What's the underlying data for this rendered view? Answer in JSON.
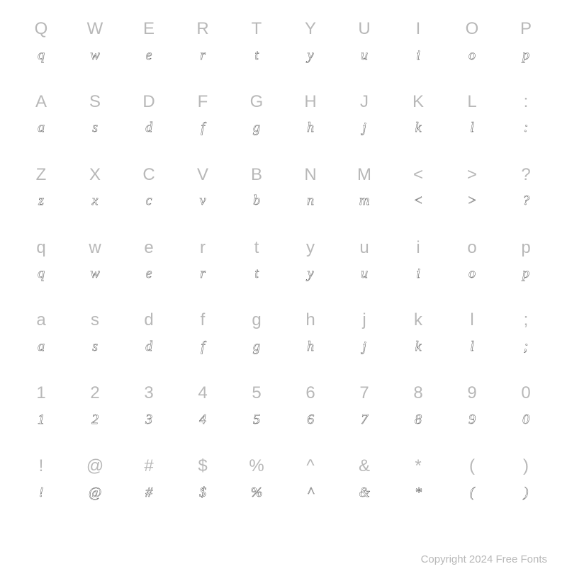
{
  "rows": [
    {
      "labels": [
        "Q",
        "W",
        "E",
        "R",
        "T",
        "Y",
        "U",
        "I",
        "O",
        "P"
      ],
      "glyphs": [
        "q",
        "w",
        "e",
        "r",
        "t",
        "y",
        "u",
        "i",
        "o",
        "p"
      ]
    },
    {
      "labels": [
        "A",
        "S",
        "D",
        "F",
        "G",
        "H",
        "J",
        "K",
        "L",
        ":"
      ],
      "glyphs": [
        "a",
        "s",
        "d",
        "f",
        "g",
        "h",
        "j",
        "k",
        "l",
        ":"
      ]
    },
    {
      "labels": [
        "Z",
        "X",
        "C",
        "V",
        "B",
        "N",
        "M",
        "<",
        ">",
        "?"
      ],
      "glyphs": [
        "z",
        "x",
        "c",
        "v",
        "b",
        "n",
        "m",
        "<",
        ">",
        "?"
      ]
    },
    {
      "labels": [
        "q",
        "w",
        "e",
        "r",
        "t",
        "y",
        "u",
        "i",
        "o",
        "p"
      ],
      "glyphs": [
        "q",
        "w",
        "e",
        "r",
        "t",
        "y",
        "u",
        "i",
        "o",
        "p"
      ]
    },
    {
      "labels": [
        "a",
        "s",
        "d",
        "f",
        "g",
        "h",
        "j",
        "k",
        "l",
        ";"
      ],
      "glyphs": [
        "a",
        "s",
        "d",
        "f",
        "g",
        "h",
        "j",
        "k",
        "l",
        ";"
      ]
    },
    {
      "labels": [
        "1",
        "2",
        "3",
        "4",
        "5",
        "6",
        "7",
        "8",
        "9",
        "0"
      ],
      "glyphs": [
        "1",
        "2",
        "3",
        "4",
        "5",
        "6",
        "7",
        "8",
        "9",
        "0"
      ]
    },
    {
      "labels": [
        "!",
        "@",
        "#",
        "$",
        "%",
        "^",
        "&",
        "*",
        "(",
        ")"
      ],
      "glyphs": [
        "!",
        "@",
        "#",
        "$",
        "%",
        "^",
        "&",
        "*",
        "(",
        ")"
      ]
    }
  ],
  "copyright": "Copyright 2024 Free Fonts",
  "colors": {
    "label_color": "#b8b8b8",
    "glyph_stroke": "#000000",
    "glyph_fill": "#ffffff",
    "background": "#ffffff"
  },
  "typography": {
    "label_fontsize": 24,
    "glyph_fontsize": 20,
    "copyright_fontsize": 15
  }
}
